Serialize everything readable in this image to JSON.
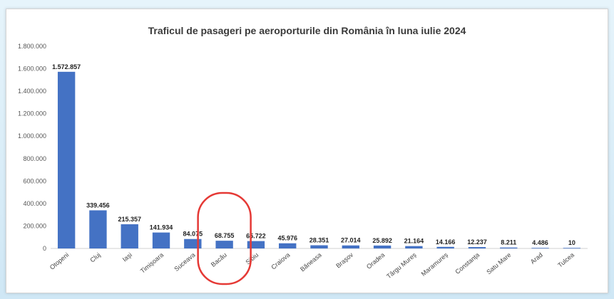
{
  "chart_data": {
    "type": "bar",
    "title": "Traficul de pasageri pe aeroporturile din România în luna iulie 2024",
    "xlabel": "",
    "ylabel": "",
    "ylim": [
      0,
      1800000
    ],
    "yticks": [
      "0",
      "200.000",
      "400.000",
      "600.000",
      "800.000",
      "1.000.000",
      "1.200.000",
      "1.400.000",
      "1.600.000",
      "1.800.000"
    ],
    "grid": false,
    "categories": [
      "Otopeni",
      "Cluj",
      "Iași",
      "Timișoara",
      "Suceava",
      "Bacău",
      "Sibiu",
      "Craiova",
      "Băneasa",
      "Brașov",
      "Oradea",
      "Târgu Mureș",
      "Maramureș",
      "Constanța",
      "Satu Mare",
      "Arad",
      "Tulcea"
    ],
    "values": [
      1572857,
      339456,
      215357,
      141934,
      84075,
      68755,
      65722,
      45976,
      28351,
      27014,
      25892,
      21164,
      14166,
      12237,
      8211,
      4486,
      10
    ],
    "value_labels": [
      "1.572.857",
      "339.456",
      "215.357",
      "141.934",
      "84.075",
      "68.755",
      "65.722",
      "45.976",
      "28.351",
      "27.014",
      "25.892",
      "21.164",
      "14.166",
      "12.237",
      "8.211",
      "4.486",
      "10"
    ],
    "bar_color": "#4472c4",
    "highlight": {
      "category": "Bacău",
      "color": "#e53935"
    }
  }
}
